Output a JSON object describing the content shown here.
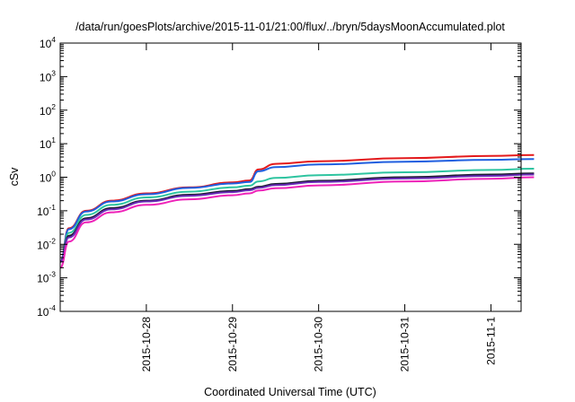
{
  "chart_data": {
    "type": "line",
    "title": "/data/run/goesPlots/archive/2015-11-01/21:00/flux/../bryn/5daysMoonAccumulated.plot",
    "xlabel": "Coordinated Universal Time (UTC)",
    "ylabel": "cSv",
    "yscale": "log",
    "ylim_exp": [
      -4,
      4
    ],
    "ytick_exponents": [
      -4,
      -3,
      -2,
      -1,
      0,
      1,
      2,
      3,
      4
    ],
    "ytick_base": "10",
    "xlim": [
      "2015-10-27 12:40",
      "2015-11-01 21:00"
    ],
    "xtick_labels": [
      "2015-10-28",
      "2015-10-29",
      "2015-10-30",
      "2015-10-31",
      "2015-11-1"
    ],
    "xtick_days": [
      1,
      2,
      3,
      4,
      5
    ],
    "grid": false,
    "legend": "none",
    "series": [
      {
        "color": "#e41a1c",
        "x_days": [
          0,
          0.1,
          0.3,
          0.6,
          1.0,
          1.5,
          2.0,
          2.2,
          2.3,
          2.5,
          3.0,
          4.0,
          5.0,
          5.5
        ],
        "y": [
          0.003,
          0.03,
          0.1,
          0.2,
          0.33,
          0.5,
          0.7,
          0.8,
          1.7,
          2.5,
          3.0,
          3.7,
          4.3,
          4.6
        ]
      },
      {
        "color": "#1f5fe0",
        "x_days": [
          0,
          0.1,
          0.3,
          0.6,
          1.0,
          1.5,
          2.0,
          2.2,
          2.3,
          2.5,
          3.0,
          4.0,
          5.0,
          5.5
        ],
        "y": [
          0.003,
          0.028,
          0.095,
          0.19,
          0.31,
          0.48,
          0.65,
          0.72,
          1.5,
          2.0,
          2.4,
          2.9,
          3.3,
          3.5
        ]
      },
      {
        "color": "#2ec4a0",
        "x_days": [
          0,
          0.1,
          0.3,
          0.6,
          1.0,
          1.5,
          2.0,
          2.2,
          2.3,
          2.5,
          3.0,
          4.0,
          5.0,
          5.5
        ],
        "y": [
          0.003,
          0.022,
          0.075,
          0.15,
          0.25,
          0.37,
          0.5,
          0.56,
          0.75,
          0.95,
          1.15,
          1.4,
          1.65,
          1.8
        ]
      },
      {
        "color": "#1a1a2e",
        "x_days": [
          0,
          0.1,
          0.3,
          0.6,
          1.0,
          1.5,
          2.0,
          2.2,
          2.3,
          2.5,
          3.0,
          4.0,
          5.0,
          5.5
        ],
        "y": [
          0.003,
          0.018,
          0.06,
          0.12,
          0.2,
          0.3,
          0.39,
          0.44,
          0.52,
          0.63,
          0.78,
          1.0,
          1.2,
          1.3
        ]
      },
      {
        "color": "#6a2bb8",
        "x_days": [
          0,
          0.1,
          0.3,
          0.6,
          1.0,
          1.5,
          2.0,
          2.2,
          2.3,
          2.5,
          3.0,
          4.0,
          5.0,
          5.5
        ],
        "y": [
          0.003,
          0.016,
          0.055,
          0.11,
          0.19,
          0.28,
          0.36,
          0.41,
          0.48,
          0.58,
          0.72,
          0.92,
          1.1,
          1.2
        ]
      },
      {
        "color": "#ee22b8",
        "x_days": [
          0,
          0.1,
          0.3,
          0.6,
          1.0,
          1.5,
          2.0,
          2.2,
          2.3,
          2.5,
          3.0,
          4.0,
          5.0,
          5.5
        ],
        "y": [
          0.002,
          0.012,
          0.045,
          0.09,
          0.15,
          0.22,
          0.29,
          0.33,
          0.4,
          0.47,
          0.57,
          0.75,
          0.9,
          1.0
        ]
      }
    ]
  }
}
